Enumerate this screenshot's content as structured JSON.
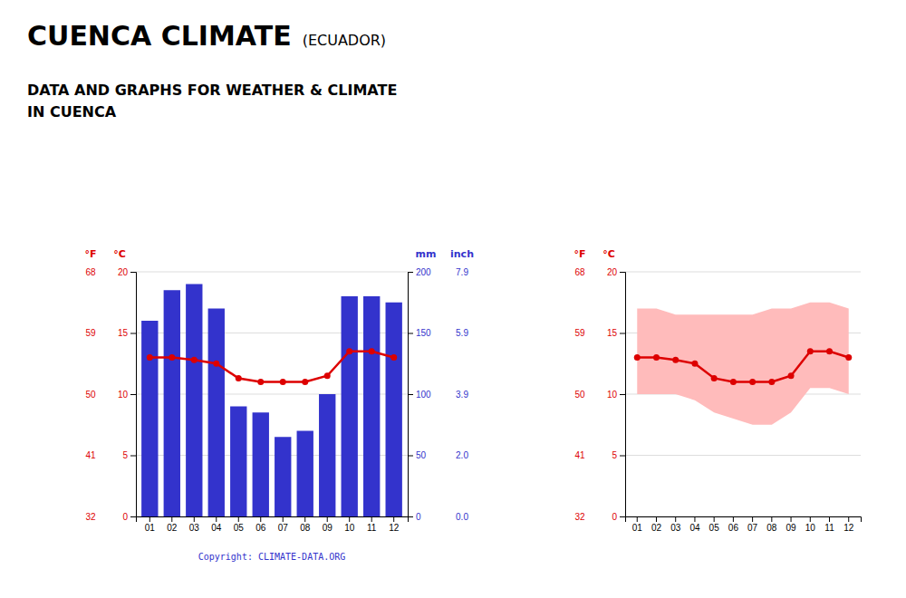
{
  "chart_data": [
    {
      "type": "bar",
      "title": "CUENCA CLIMATE",
      "subtitle": "DATA AND GRAPHS FOR WEATHER & CLIMATE\nIN CUENCA",
      "annotations": [
        "(ECUADOR)",
        "Copyright: CLIMATE-DATA.ORG"
      ],
      "categories": [
        "01",
        "02",
        "03",
        "04",
        "05",
        "06",
        "07",
        "08",
        "09",
        "10",
        "11",
        "12"
      ],
      "series": [
        {
          "type": "bar",
          "color": "#3333cc",
          "axis": "y2",
          "values": [
            160,
            185,
            190,
            170,
            90,
            85,
            65,
            70,
            100,
            180,
            180,
            175
          ]
        },
        {
          "type": "line",
          "color": "#dd0000",
          "marker": "circle",
          "values": [
            13.0,
            13.0,
            12.8,
            12.5,
            11.3,
            11.0,
            11.0,
            11.0,
            11.5,
            13.5,
            13.5,
            13.0
          ]
        }
      ],
      "ylabel": "°C",
      "ylim": [
        0,
        20
      ],
      "yticks": [
        0,
        5,
        10,
        15,
        20
      ],
      "y2label": "mm",
      "y2lim": [
        0,
        200
      ],
      "y2ticks": [
        0,
        50,
        100,
        150,
        200
      ],
      "y3label": "°F",
      "y3ticks": [
        {
          "value": 0,
          "label": "32"
        },
        {
          "value": 5,
          "label": "41"
        },
        {
          "value": 10,
          "label": "50"
        },
        {
          "value": 15,
          "label": "59"
        },
        {
          "value": 20,
          "label": "68"
        }
      ],
      "y4label": "inch",
      "y4ticks": [
        {
          "value": 0,
          "label": "0.0"
        },
        {
          "value": 50,
          "label": "2.0"
        },
        {
          "value": 100,
          "label": "3.9"
        },
        {
          "value": 150,
          "label": "5.9"
        },
        {
          "value": 200,
          "label": "7.9"
        }
      ],
      "grid": true
    },
    {
      "type": "line",
      "categories": [
        "01",
        "02",
        "03",
        "04",
        "05",
        "06",
        "07",
        "08",
        "09",
        "10",
        "11",
        "12"
      ],
      "series": [
        {
          "type": "area",
          "color": "#ffbbbb",
          "low": [
            10.0,
            10.0,
            10.0,
            9.5,
            8.5,
            8.0,
            7.5,
            7.5,
            8.5,
            10.5,
            10.5,
            10.0
          ],
          "high": [
            17.0,
            17.0,
            16.5,
            16.5,
            16.5,
            16.5,
            16.5,
            17.0,
            17.0,
            17.5,
            17.5,
            17.0
          ]
        },
        {
          "type": "line",
          "color": "#dd0000",
          "marker": "circle",
          "values": [
            13.0,
            13.0,
            12.8,
            12.5,
            11.3,
            11.0,
            11.0,
            11.0,
            11.5,
            13.5,
            13.5,
            13.0
          ]
        }
      ],
      "ylabel": "°C",
      "ylim": [
        0,
        20
      ],
      "yticks": [
        0,
        5,
        10,
        15,
        20
      ],
      "y3label": "°F",
      "y3ticks": [
        {
          "value": 0,
          "label": "32"
        },
        {
          "value": 5,
          "label": "41"
        },
        {
          "value": 10,
          "label": "50"
        },
        {
          "value": 15,
          "label": "59"
        },
        {
          "value": 20,
          "label": "68"
        }
      ],
      "grid": true
    }
  ]
}
